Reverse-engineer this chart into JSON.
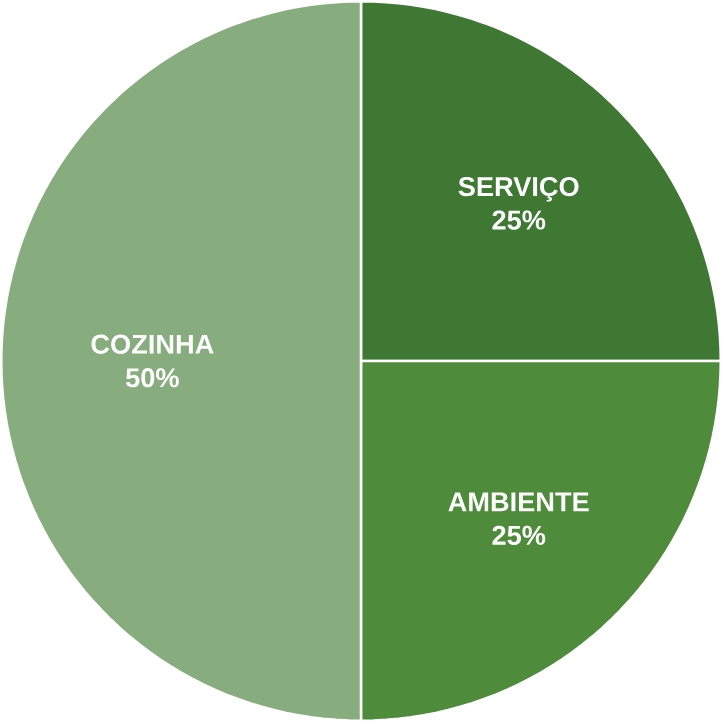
{
  "chart_data": {
    "type": "pie",
    "categories": [
      "SERVIÇO",
      "AMBIENTE",
      "COZINHA"
    ],
    "values": [
      25,
      25,
      50
    ],
    "value_labels": [
      "25%",
      "25%",
      "50%"
    ],
    "colors": [
      "#3e7833",
      "#4e8b3a",
      "#87ac7d"
    ]
  }
}
